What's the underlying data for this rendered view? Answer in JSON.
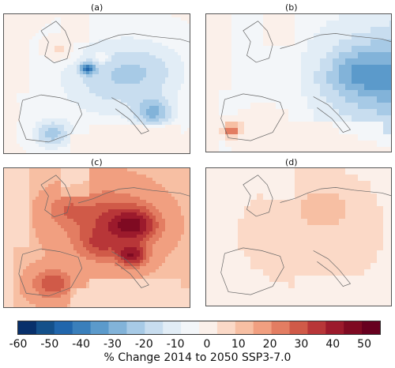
{
  "chart_data": [
    {
      "type": "heatmap",
      "panel": "(a)",
      "pattern": "moderate decrease over central Europe, Alps, Po valley and Iberia; small increases over Great Britain",
      "values_range": [
        -35,
        15
      ]
    },
    {
      "type": "heatmap",
      "panel": "(b)",
      "pattern": "decrease increasing eastward, strongest over Germany and Poland; small increase over Portugal",
      "values_range": [
        -40,
        25
      ]
    },
    {
      "type": "heatmap",
      "panel": "(c)",
      "pattern": "increase everywhere, strongest over Benelux, Germany, Po valley and Spain",
      "values_range": [
        5,
        55
      ]
    },
    {
      "type": "heatmap",
      "panel": "(d)",
      "pattern": "small increase, largest over Netherlands/northern Germany",
      "values_range": [
        0,
        15
      ]
    }
  ],
  "panels": [
    "(a)",
    "(b)",
    "(c)",
    "(d)"
  ],
  "colorbar": {
    "ticks": [
      "-60",
      "-50",
      "-40",
      "-30",
      "-20",
      "-10",
      "0",
      "10",
      "20",
      "30",
      "40",
      "50"
    ],
    "range": [
      -60,
      55
    ],
    "label": "% Change 2014 to 2050 SSP3-7.0",
    "colors": [
      "#08306b",
      "#14508a",
      "#2166ac",
      "#3a7fbb",
      "#5b9acb",
      "#82b3d9",
      "#a7cae6",
      "#c8ddef",
      "#e2edf6",
      "#f3f6f9",
      "#fbf0ea",
      "#fbd9c7",
      "#f7bfa3",
      "#f19f80",
      "#e37d62",
      "#d05a48",
      "#b83638",
      "#9c1a2c",
      "#7f0a22",
      "#67001f"
    ]
  }
}
